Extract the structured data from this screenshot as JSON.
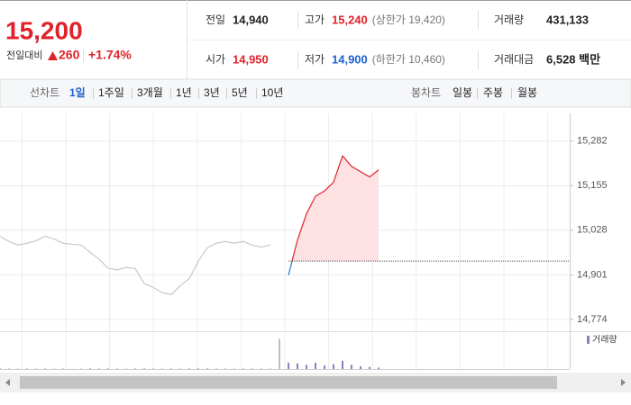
{
  "quote": {
    "price": "15,200",
    "change_label": "전일대비",
    "change": "260",
    "change_pct": "+1.74%",
    "color": "#e0232a",
    "rows": [
      [
        {
          "label": "전일",
          "value": "14,940",
          "color": "#222"
        },
        {
          "label": "고가",
          "value": "15,240",
          "color": "#e0232a",
          "note": "(상한가 19,420)"
        },
        {
          "label": "거래량",
          "value": "431,133",
          "color": "#222"
        }
      ],
      [
        {
          "label": "시가",
          "value": "14,950",
          "color": "#e0232a"
        },
        {
          "label": "저가",
          "value": "14,900",
          "color": "#1f5fd1",
          "note": "(하한가 10,460)"
        },
        {
          "label": "거래대금",
          "value": "6,528 백만",
          "color": "#222"
        }
      ]
    ]
  },
  "tabs": {
    "line_label": "선차트",
    "line_periods": [
      "1일",
      "1주일",
      "3개월",
      "1년",
      "3년",
      "5년",
      "10년"
    ],
    "selected": 0,
    "candle_label": "봉차트",
    "candle_periods": [
      "일봉",
      "주봉",
      "월봉"
    ]
  },
  "chart_data": {
    "type": "line",
    "grid": true,
    "xlim": [
      0,
      63.2
    ],
    "ylim": [
      14748,
      15361
    ],
    "yticks": [
      {
        "value": 15282,
        "label": "15,282"
      },
      {
        "value": 15155,
        "label": "15,155"
      },
      {
        "value": 15028,
        "label": "15,028"
      },
      {
        "value": 14901,
        "label": "14,901"
      },
      {
        "value": 14774,
        "label": "14,774"
      }
    ],
    "reference_line": 14940,
    "area_color": "#fde1e3",
    "series": [
      {
        "color": "#c8c8c8",
        "values": [
          15011,
          14996,
          14986,
          14991,
          14998,
          15011,
          15003,
          14991,
          14988,
          14986,
          14965,
          14945,
          14920,
          14915,
          14922,
          14919,
          14876,
          14865,
          14850,
          14845,
          14870,
          14890,
          14940,
          14978,
          14991,
          14996,
          14991,
          14996,
          14985,
          14980,
          14986
        ]
      },
      {
        "color": "#e0232a",
        "color_below": "#2a6fd6",
        "values": [
          null,
          null,
          null,
          null,
          null,
          null,
          null,
          null,
          null,
          null,
          null,
          null,
          null,
          null,
          null,
          null,
          null,
          null,
          null,
          null,
          null,
          null,
          null,
          null,
          null,
          null,
          null,
          null,
          null,
          null,
          null,
          null,
          14900,
          15000,
          15075,
          15125,
          15140,
          15165,
          15240,
          15210,
          15195,
          15180,
          15200
        ]
      }
    ],
    "volume": {
      "name": "거래량",
      "color": "#8e7cc3",
      "other_color": "#bdbdbd",
      "ylim": [
        0,
        50000
      ],
      "values": [
        1200,
        800,
        600,
        900,
        700,
        1000,
        600,
        800,
        500,
        700,
        1500,
        900,
        1200,
        800,
        600,
        1100,
        1300,
        900,
        700,
        1000,
        800,
        1200,
        1600,
        1400,
        900,
        800,
        700,
        1000,
        1100,
        800,
        900,
        44000,
        9000,
        8000,
        6000,
        9000,
        5000,
        7000,
        12000,
        6000,
        4000,
        3000,
        2000
      ]
    }
  }
}
